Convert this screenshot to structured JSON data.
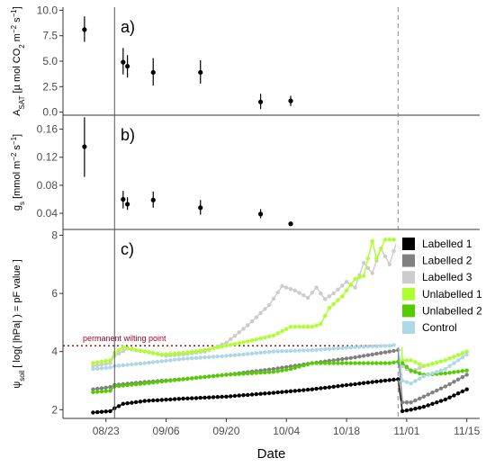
{
  "chart_data": [
    {
      "type": "scatter",
      "panel_label": "a)",
      "ylabel_parts": [
        "A",
        "SAT",
        " [µ mol CO",
        "2",
        " m",
        "−2",
        " s",
        "−1",
        "]"
      ],
      "yticks": [
        "0.0",
        "2.5",
        "5.0",
        "7.5",
        "10.0"
      ],
      "ylim": [
        -0.3,
        10.3
      ],
      "points": [
        {
          "x": "2021-08-18",
          "y": 8.1,
          "lo": 6.9,
          "hi": 9.4
        },
        {
          "x": "2021-08-27",
          "y": 4.9,
          "lo": 3.7,
          "hi": 6.3
        },
        {
          "x": "2021-08-28",
          "y": 4.5,
          "lo": 3.4,
          "hi": 5.6
        },
        {
          "x": "2021-09-03",
          "y": 3.9,
          "lo": 2.6,
          "hi": 5.3
        },
        {
          "x": "2021-09-14",
          "y": 3.9,
          "lo": 2.8,
          "hi": 5.1
        },
        {
          "x": "2021-09-28",
          "y": 1.0,
          "lo": 0.3,
          "hi": 1.8
        },
        {
          "x": "2021-10-05",
          "y": 1.1,
          "lo": 0.6,
          "hi": 1.6
        }
      ]
    },
    {
      "type": "scatter",
      "panel_label": "b)",
      "ylabel_parts": [
        "g",
        "s",
        " [mmol m",
        "−2",
        " s",
        "−1",
        "]"
      ],
      "yticks": [
        "0.04",
        "0.08",
        "0.12",
        "0.16"
      ],
      "ylim": [
        0.017,
        0.18
      ],
      "points": [
        {
          "x": "2021-08-18",
          "y": 0.135,
          "lo": 0.092,
          "hi": 0.177
        },
        {
          "x": "2021-08-27",
          "y": 0.06,
          "lo": 0.047,
          "hi": 0.072
        },
        {
          "x": "2021-08-28",
          "y": 0.053,
          "lo": 0.045,
          "hi": 0.063
        },
        {
          "x": "2021-09-03",
          "y": 0.059,
          "lo": 0.048,
          "hi": 0.071
        },
        {
          "x": "2021-09-14",
          "y": 0.048,
          "lo": 0.038,
          "hi": 0.059
        },
        {
          "x": "2021-09-28",
          "y": 0.039,
          "lo": 0.033,
          "hi": 0.046
        },
        {
          "x": "2021-10-05",
          "y": 0.025,
          "lo": 0.023,
          "hi": 0.028
        }
      ]
    },
    {
      "type": "line",
      "panel_label": "c)",
      "ylabel_parts": [
        "ψ",
        "soil",
        " [ log( |hPa| ) = pF value ]"
      ],
      "yticks": [
        "2",
        "4",
        "6",
        "8"
      ],
      "ylim": [
        1.7,
        8.2
      ],
      "xlabel": "Date",
      "xticks": [
        "08/23",
        "09/06",
        "09/20",
        "10/04",
        "10/18",
        "11/01",
        "11/15"
      ],
      "xtick_dates": [
        "2021-08-23",
        "2021-09-06",
        "2021-09-20",
        "2021-10-04",
        "2021-10-18",
        "2021-11-01",
        "2021-11-15"
      ],
      "xlim": [
        "2021-08-13",
        "2021-11-18"
      ],
      "hline": {
        "y": 4.2,
        "label": "permanent wilting point",
        "color": "#8b1a1a"
      },
      "legend_position": "right",
      "series": [
        {
          "name": "Labelled 1",
          "color": "#000000",
          "keys": [
            [
              "2021-08-20",
              1.9
            ],
            [
              "2021-08-24",
              1.95
            ],
            [
              "2021-08-25",
              2.05
            ],
            [
              "2021-08-27",
              2.2
            ],
            [
              "2021-09-01",
              2.3
            ],
            [
              "2021-09-10",
              2.38
            ],
            [
              "2021-09-20",
              2.45
            ],
            [
              "2021-10-01",
              2.58
            ],
            [
              "2021-10-10",
              2.7
            ],
            [
              "2021-10-20",
              2.88
            ],
            [
              "2021-10-28",
              3.02
            ],
            [
              "2021-10-30",
              3.05
            ],
            [
              "2021-10-31",
              1.95
            ],
            [
              "2021-11-02",
              2.0
            ],
            [
              "2021-11-05",
              2.1
            ],
            [
              "2021-11-10",
              2.35
            ],
            [
              "2021-11-15",
              2.7
            ]
          ]
        },
        {
          "name": "Labelled 2",
          "color": "#808080",
          "keys": [
            [
              "2021-08-20",
              2.7
            ],
            [
              "2021-08-24",
              2.78
            ],
            [
              "2021-08-25",
              2.85
            ],
            [
              "2021-09-01",
              2.95
            ],
            [
              "2021-09-10",
              3.05
            ],
            [
              "2021-09-20",
              3.2
            ],
            [
              "2021-10-01",
              3.4
            ],
            [
              "2021-10-10",
              3.6
            ],
            [
              "2021-10-20",
              3.8
            ],
            [
              "2021-10-28",
              4.0
            ],
            [
              "2021-10-30",
              4.05
            ],
            [
              "2021-10-31",
              2.25
            ],
            [
              "2021-11-02",
              2.25
            ],
            [
              "2021-11-05",
              2.45
            ],
            [
              "2021-11-10",
              2.8
            ],
            [
              "2021-11-15",
              3.2
            ]
          ]
        },
        {
          "name": "Labelled 3",
          "color": "#cccccc",
          "keys": [
            [
              "2021-08-20",
              3.5
            ],
            [
              "2021-08-24",
              3.6
            ],
            [
              "2021-08-25",
              3.85
            ],
            [
              "2021-08-28",
              4.1
            ],
            [
              "2021-09-01",
              4.0
            ],
            [
              "2021-09-06",
              3.85
            ],
            [
              "2021-09-10",
              3.9
            ],
            [
              "2021-09-15",
              4.0
            ],
            [
              "2021-09-20",
              4.3
            ],
            [
              "2021-09-25",
              4.9
            ],
            [
              "2021-09-30",
              5.6
            ],
            [
              "2021-10-03",
              6.25
            ],
            [
              "2021-10-06",
              6.1
            ],
            [
              "2021-10-09",
              5.85
            ],
            [
              "2021-10-11",
              6.2
            ],
            [
              "2021-10-13",
              5.8
            ],
            [
              "2021-10-15",
              6.0
            ],
            [
              "2021-10-18",
              6.4
            ],
            [
              "2021-10-20",
              6.2
            ],
            [
              "2021-10-22",
              7.05
            ],
            [
              "2021-10-24",
              6.7
            ],
            [
              "2021-10-26",
              7.55
            ],
            [
              "2021-10-28",
              7.0
            ],
            [
              "2021-10-30",
              7.9
            ],
            [
              "2021-10-31",
              3.5
            ],
            [
              "2021-11-02",
              3.3
            ],
            [
              "2021-11-05",
              3.5
            ],
            [
              "2021-11-10",
              3.7
            ],
            [
              "2021-11-15",
              4.0
            ]
          ]
        },
        {
          "name": "Unlabelled 1",
          "color": "#adff2f",
          "keys": [
            [
              "2021-08-20",
              3.6
            ],
            [
              "2021-08-24",
              3.7
            ],
            [
              "2021-08-25",
              3.95
            ],
            [
              "2021-08-27",
              4.15
            ],
            [
              "2021-09-01",
              4.0
            ],
            [
              "2021-09-05",
              3.9
            ],
            [
              "2021-09-10",
              3.95
            ],
            [
              "2021-09-15",
              4.05
            ],
            [
              "2021-09-20",
              4.2
            ],
            [
              "2021-09-25",
              4.35
            ],
            [
              "2021-10-01",
              4.55
            ],
            [
              "2021-10-05",
              4.85
            ],
            [
              "2021-10-10",
              4.85
            ],
            [
              "2021-10-12",
              4.95
            ],
            [
              "2021-10-14",
              5.5
            ],
            [
              "2021-10-17",
              5.9
            ],
            [
              "2021-10-20",
              6.5
            ],
            [
              "2021-10-22",
              6.6
            ],
            [
              "2021-10-24",
              7.8
            ],
            [
              "2021-10-25",
              7.2
            ],
            [
              "2021-10-27",
              7.85
            ],
            [
              "2021-10-30",
              7.85
            ],
            [
              "2021-10-31",
              3.7
            ],
            [
              "2021-11-02",
              3.7
            ],
            [
              "2021-11-05",
              3.5
            ],
            [
              "2021-11-10",
              3.7
            ],
            [
              "2021-11-15",
              4.0
            ]
          ]
        },
        {
          "name": "Unlabelled 2",
          "color": "#55cc00",
          "keys": [
            [
              "2021-08-20",
              2.6
            ],
            [
              "2021-08-24",
              2.65
            ],
            [
              "2021-08-25",
              2.8
            ],
            [
              "2021-09-01",
              2.9
            ],
            [
              "2021-09-10",
              3.05
            ],
            [
              "2021-09-20",
              3.2
            ],
            [
              "2021-10-01",
              3.3
            ],
            [
              "2021-10-05",
              3.4
            ],
            [
              "2021-10-10",
              3.6
            ],
            [
              "2021-10-20",
              3.6
            ],
            [
              "2021-10-28",
              3.6
            ],
            [
              "2021-10-30",
              3.65
            ],
            [
              "2021-10-31",
              3.6
            ],
            [
              "2021-11-02",
              3.35
            ],
            [
              "2021-11-05",
              3.2
            ],
            [
              "2021-11-10",
              3.25
            ],
            [
              "2021-11-15",
              3.35
            ]
          ]
        },
        {
          "name": "Control",
          "color": "#add8e6",
          "keys": [
            [
              "2021-08-20",
              3.4
            ],
            [
              "2021-08-24",
              3.45
            ],
            [
              "2021-08-25",
              3.5
            ],
            [
              "2021-09-01",
              3.6
            ],
            [
              "2021-09-10",
              3.75
            ],
            [
              "2021-09-20",
              3.85
            ],
            [
              "2021-10-01",
              4.0
            ],
            [
              "2021-10-10",
              4.05
            ],
            [
              "2021-10-20",
              4.15
            ],
            [
              "2021-10-28",
              4.2
            ],
            [
              "2021-10-30",
              4.25
            ],
            [
              "2021-10-31",
              3.0
            ],
            [
              "2021-11-02",
              2.9
            ],
            [
              "2021-11-05",
              3.15
            ],
            [
              "2021-11-10",
              3.4
            ],
            [
              "2021-11-15",
              3.9
            ]
          ]
        }
      ]
    }
  ],
  "events": {
    "solid_vline_date": "2021-08-25",
    "dashed_vline_date": "2021-10-30"
  }
}
